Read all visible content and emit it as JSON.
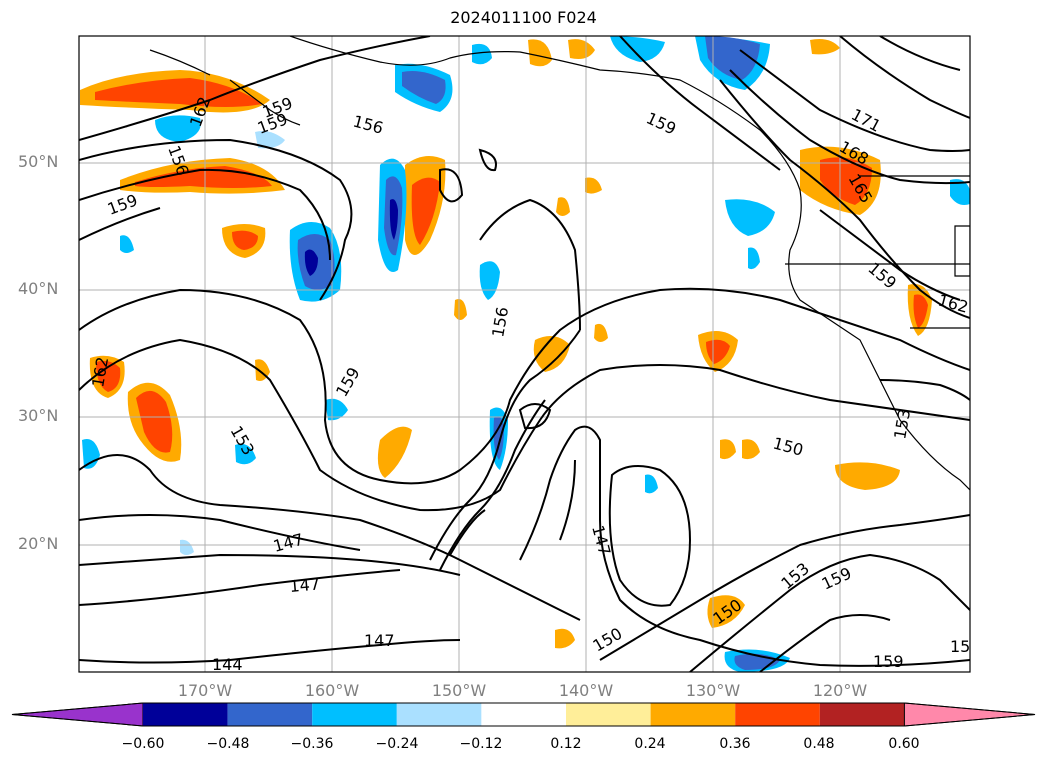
{
  "title": "2024011100 F024",
  "lat_labels": [
    "50°N",
    "40°N",
    "30°N",
    "20°N"
  ],
  "lon_labels": [
    "170°W",
    "160°W",
    "150°W",
    "140°W",
    "130°W",
    "120°W"
  ],
  "colorbar": {
    "colors": [
      "#9933cc",
      "#000099",
      "#3366cc",
      "#00bfff",
      "#aae0ff",
      "#ffffff",
      "#ffee99",
      "#ffaa00",
      "#ff4400",
      "#b22222",
      "#ff88aa"
    ],
    "tick_labels": [
      "−0.60",
      "−0.48",
      "−0.36",
      "−0.24",
      "−0.12",
      "0.12",
      "0.24",
      "0.36",
      "0.48",
      "0.60"
    ]
  },
  "contour_labels": [
    "171",
    "168",
    "165",
    "162",
    "162",
    "162",
    "159",
    "159",
    "159",
    "159",
    "159",
    "159",
    "159",
    "159",
    "156",
    "156",
    "156",
    "153",
    "153",
    "153",
    "150",
    "150",
    "150",
    "147",
    "147",
    "147",
    "147",
    "144",
    "15"
  ]
}
